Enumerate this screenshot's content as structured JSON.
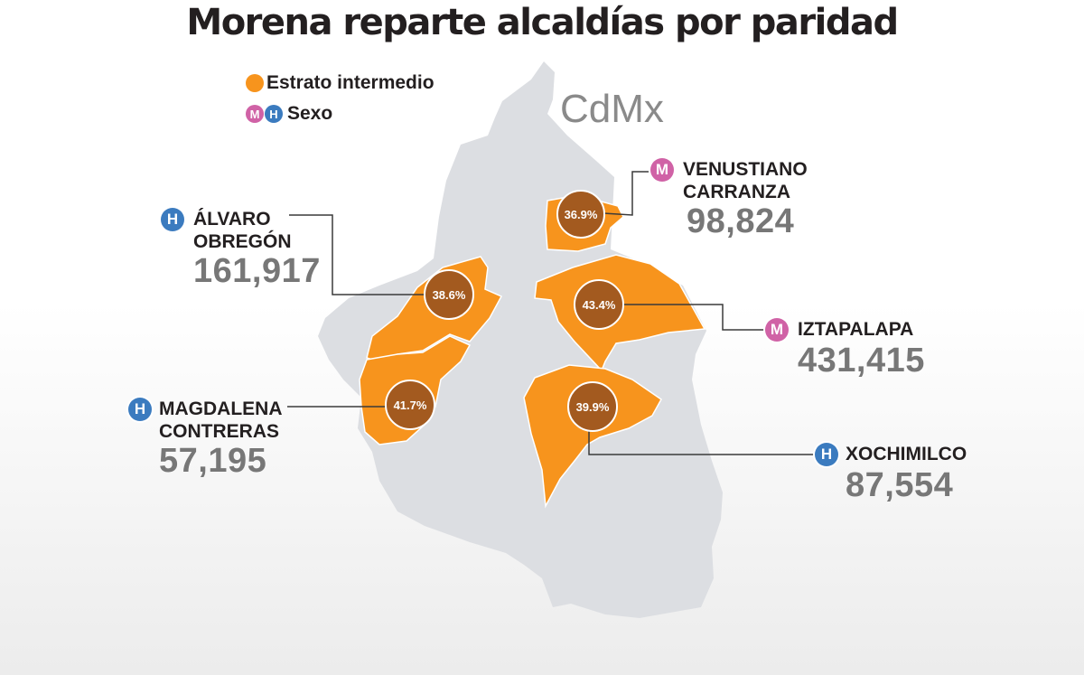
{
  "title": "Morena reparte alcaldías por paridad",
  "map_label": "CdMx",
  "legend": {
    "estrato": "Estrato intermedio",
    "sexo": "Sexo",
    "mujer_letter": "M",
    "hombre_letter": "H"
  },
  "colors": {
    "estrato_intermedio": "#f7941d",
    "marker": "#a35a1f",
    "mujer": "#d062a6",
    "hombre": "#3b7bbf",
    "map_base": "#dcdee2"
  },
  "alcaldias": [
    {
      "id": "venustiano-carranza",
      "name_line1": "VENUSTIANO",
      "name_line2": "CARRANZA",
      "sexo": "M",
      "value": "98,824",
      "pct": "36.9%"
    },
    {
      "id": "alvaro-obregon",
      "name_line1": "ÁLVARO",
      "name_line2": "OBREGÓN",
      "sexo": "H",
      "value": "161,917",
      "pct": "38.6%"
    },
    {
      "id": "iztapalapa",
      "name_line1": "IZTAPALAPA",
      "name_line2": "",
      "sexo": "M",
      "value": "431,415",
      "pct": "43.4%"
    },
    {
      "id": "magdalena-contreras",
      "name_line1": "MAGDALENA",
      "name_line2": "CONTRERAS",
      "sexo": "H",
      "value": "57,195",
      "pct": "41.7%"
    },
    {
      "id": "xochimilco",
      "name_line1": "XOCHIMILCO",
      "name_line2": "",
      "sexo": "H",
      "value": "87,554",
      "pct": "39.9%"
    }
  ]
}
